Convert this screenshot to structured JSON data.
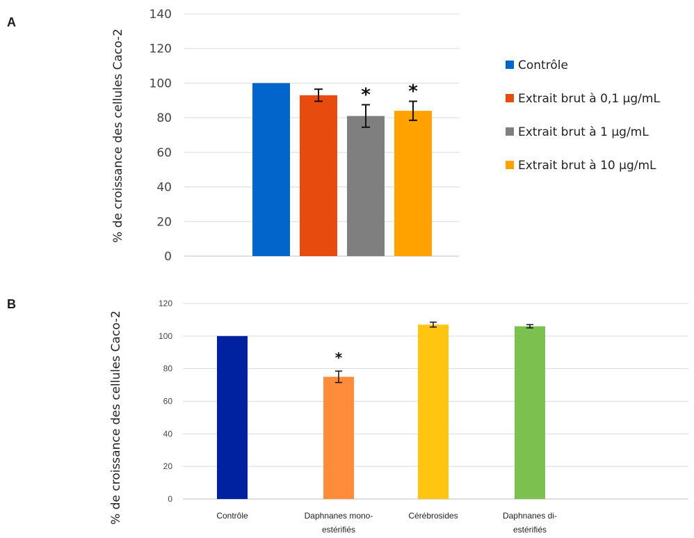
{
  "chart_data": [
    {
      "type": "bar",
      "panel": "A",
      "ylabel": "% de croissance des cellules Caco-2",
      "ylim": [
        0,
        140
      ],
      "yticks": [
        0,
        20,
        40,
        60,
        80,
        100,
        120,
        140
      ],
      "grid": true,
      "legend_position": "right",
      "series": [
        {
          "name": "Contrôle",
          "value": 100,
          "error": 0,
          "color": "#0066cc",
          "significant": false
        },
        {
          "name": "Extrait brut à 0,1 µg/mL",
          "value": 93,
          "error": 3.5,
          "color": "#e84b0e",
          "significant": false
        },
        {
          "name": "Extrait brut à 1 µg/mL",
          "value": 81,
          "error": 6.5,
          "color": "#7f7f7f",
          "significant": true
        },
        {
          "name": "Extrait brut à 10 µg/mL",
          "value": 84,
          "error": 5.5,
          "color": "#ffa200",
          "significant": true
        }
      ]
    },
    {
      "type": "bar",
      "panel": "B",
      "ylabel": "% de croissance des cellules Caco-2",
      "ylim": [
        0,
        120
      ],
      "yticks": [
        0,
        20,
        40,
        60,
        80,
        100,
        120
      ],
      "grid": true,
      "categories": [
        [
          "Contrôle"
        ],
        [
          "Daphnanes mono-",
          "estérifiés"
        ],
        [
          "Cérébrosides"
        ],
        [
          "Daphnanes di-",
          "estérifiés"
        ]
      ],
      "values": [
        100,
        75,
        107,
        106
      ],
      "errors": [
        0,
        3.5,
        1.5,
        1
      ],
      "colors": [
        "#0022a0",
        "#ff8c3a",
        "#ffc510",
        "#7cc050"
      ],
      "significant": [
        false,
        true,
        false,
        false
      ]
    }
  ],
  "annotations": {
    "significance_marker": "*",
    "panel_labels": [
      "A",
      "B"
    ]
  }
}
